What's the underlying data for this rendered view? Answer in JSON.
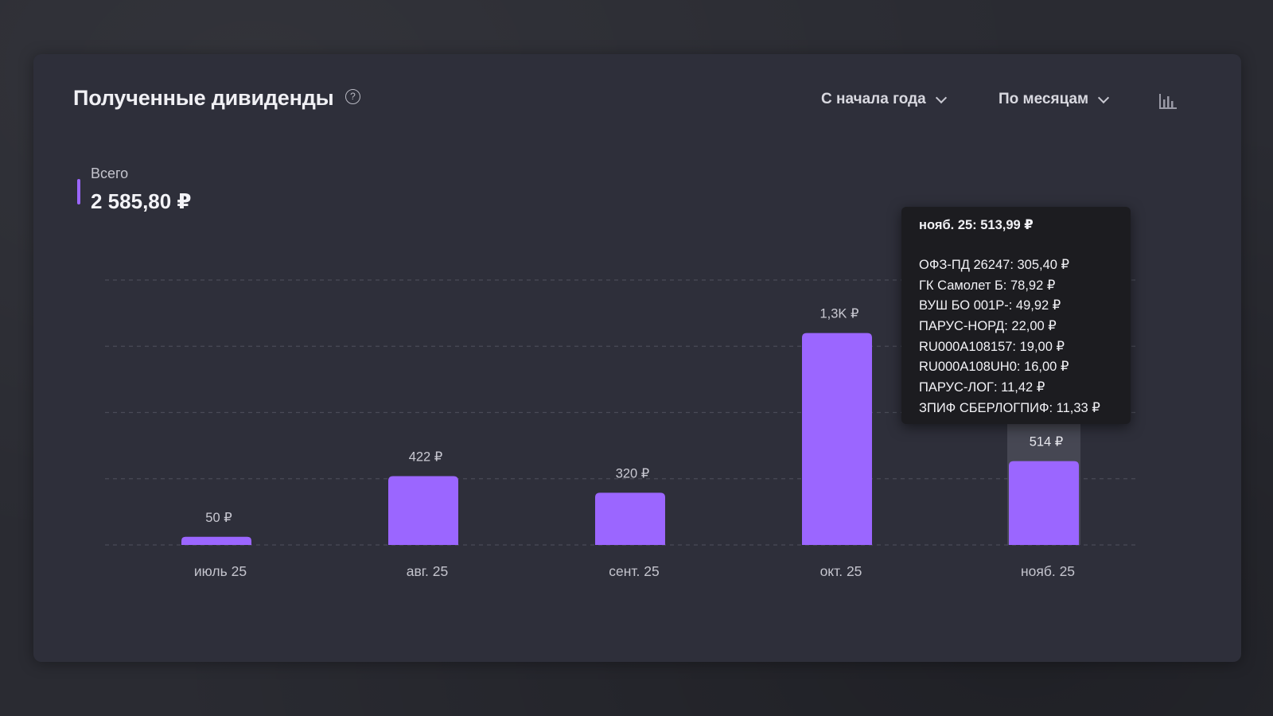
{
  "card": {
    "title": "Полученные дивиденды",
    "help_symbol": "?",
    "period_dropdown": "С начала года",
    "grouping_dropdown": "По месяцам",
    "total": {
      "label": "Всего",
      "value": "2 585,80 ₽"
    }
  },
  "colors": {
    "bar": "#9b66ff",
    "bar_highlight_bg": "#4a4b58",
    "grid": "#4a4b57",
    "tooltip_bg": "#1c1c20"
  },
  "chart_data": {
    "type": "bar",
    "categories": [
      "июль 25",
      "авг. 25",
      "сент. 25",
      "окт. 25",
      "нояб. 25"
    ],
    "values": [
      50,
      422,
      320,
      1300,
      514
    ],
    "data_labels": [
      "50 ₽",
      "422 ₽",
      "320 ₽",
      "1,3K ₽",
      "514 ₽"
    ],
    "ylim": [
      0,
      1625
    ],
    "grid": true,
    "grid_lines": 5,
    "highlighted_index": 4,
    "tooltip": {
      "title": "нояб. 25: 513,99 ₽",
      "items": [
        "ОФЗ-ПД 26247: 305,40 ₽",
        "ГК Самолет Б: 78,92 ₽",
        "ВУШ БО 001Р-: 49,92 ₽",
        "ПАРУС-НОРД: 22,00 ₽",
        "RU000A108157: 19,00 ₽",
        "RU000A108UH0: 16,00 ₽",
        "ПАРУС-ЛОГ: 11,42 ₽",
        "ЗПИФ СБЕРЛОГПИФ: 11,33 ₽"
      ]
    }
  }
}
